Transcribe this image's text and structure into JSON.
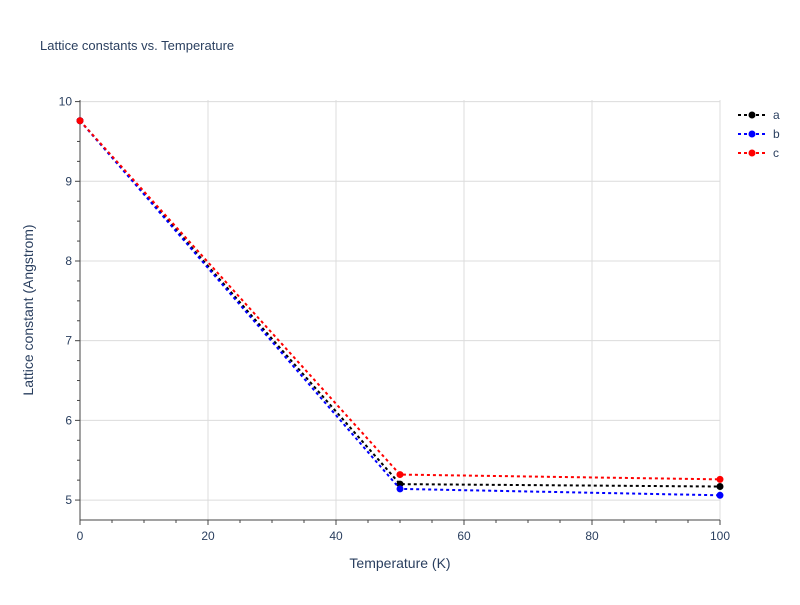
{
  "chart_data": {
    "type": "line",
    "title": "Lattice constants vs. Temperature",
    "xlabel": "Temperature (K)",
    "ylabel": "Lattice constant (Angstrom)",
    "xlim": [
      0,
      100
    ],
    "ylim": [
      4.75,
      10.02
    ],
    "x_ticks": [
      0,
      20,
      40,
      60,
      80,
      100
    ],
    "y_ticks": [
      5,
      6,
      7,
      8,
      9,
      10
    ],
    "x": [
      0,
      50,
      100
    ],
    "series": [
      {
        "name": "a",
        "color": "#000000",
        "values": [
          9.76,
          5.2,
          5.17
        ]
      },
      {
        "name": "b",
        "color": "#0000ff",
        "values": [
          9.76,
          5.14,
          5.06
        ]
      },
      {
        "name": "c",
        "color": "#ff0000",
        "values": [
          9.76,
          5.32,
          5.26
        ]
      }
    ],
    "grid": true,
    "legend_position": "top-right",
    "line_style": "dotted",
    "marker": "circle"
  }
}
